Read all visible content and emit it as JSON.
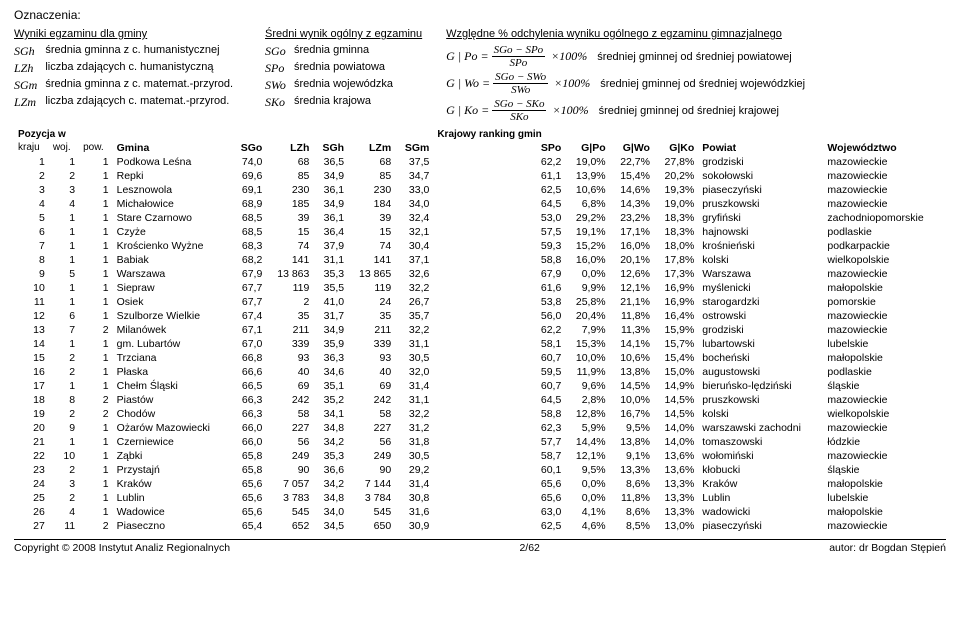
{
  "title": "Oznaczenia:",
  "legend_left": {
    "heading": "Wyniki egzaminu dla gminy",
    "rows": [
      {
        "sym": "SGh",
        "txt": "średnia gminna z c. humanistycznej"
      },
      {
        "sym": "LZh",
        "txt": "liczba zdających c. humanistyczną"
      },
      {
        "sym": "SGm",
        "txt": "średnia gminna z c. matemat.-przyrod."
      },
      {
        "sym": "LZm",
        "txt": "liczba zdających c. matemat.-przyrod."
      }
    ]
  },
  "legend_mid": {
    "heading": "Średni wynik ogólny z egzaminu",
    "rows": [
      {
        "sym": "SGo",
        "txt": "średnia gminna"
      },
      {
        "sym": "SPo",
        "txt": "średnia powiatowa"
      },
      {
        "sym": "SWo",
        "txt": "średnia wojewódzka"
      },
      {
        "sym": "SKo",
        "txt": "średnia krajowa"
      }
    ]
  },
  "legend_right": {
    "heading": "Względne % odchylenia wyniku ogólnego z egzaminu gimnazjalnego",
    "rows": [
      {
        "lhs": "G | Po =",
        "num": "SGo − SPo",
        "den": "SPo",
        "pct": "×100%",
        "desc": "średniej gminnej od średniej powiatowej"
      },
      {
        "lhs": "G | Wo =",
        "num": "SGo − SWo",
        "den": "SWo",
        "pct": "×100%",
        "desc": "średniej gminnej od średniej wojewódzkiej"
      },
      {
        "lhs": "G | Ko =",
        "num": "SGo − SKo",
        "den": "SKo",
        "pct": "×100%",
        "desc": "średniej gminnej od średniej krajowej"
      }
    ]
  },
  "table": {
    "pos_label": "Pozycja w",
    "kr_label": "Krajowy ranking gmin",
    "columns": [
      "kraju",
      "woj.",
      "pow.",
      "Gmina",
      "SGo",
      "LZh",
      "SGh",
      "LZm",
      "SGm",
      "SPo",
      "G|Po",
      "G|Wo",
      "G|Ko",
      "Powiat",
      "Województwo"
    ],
    "rows": [
      [
        "1",
        "1",
        "1",
        "Podkowa Leśna",
        "74,0",
        "68",
        "36,5",
        "68",
        "37,5",
        "62,2",
        "19,0%",
        "22,7%",
        "27,8%",
        "grodziski",
        "mazowieckie"
      ],
      [
        "2",
        "2",
        "1",
        "Repki",
        "69,6",
        "85",
        "34,9",
        "85",
        "34,7",
        "61,1",
        "13,9%",
        "15,4%",
        "20,2%",
        "sokołowski",
        "mazowieckie"
      ],
      [
        "3",
        "3",
        "1",
        "Lesznowola",
        "69,1",
        "230",
        "36,1",
        "230",
        "33,0",
        "62,5",
        "10,6%",
        "14,6%",
        "19,3%",
        "piaseczyński",
        "mazowieckie"
      ],
      [
        "4",
        "4",
        "1",
        "Michałowice",
        "68,9",
        "185",
        "34,9",
        "184",
        "34,0",
        "64,5",
        "6,8%",
        "14,3%",
        "19,0%",
        "pruszkowski",
        "mazowieckie"
      ],
      [
        "5",
        "1",
        "1",
        "Stare Czarnowo",
        "68,5",
        "39",
        "36,1",
        "39",
        "32,4",
        "53,0",
        "29,2%",
        "23,2%",
        "18,3%",
        "gryfiński",
        "zachodniopomorskie"
      ],
      [
        "6",
        "1",
        "1",
        "Czyże",
        "68,5",
        "15",
        "36,4",
        "15",
        "32,1",
        "57,5",
        "19,1%",
        "17,1%",
        "18,3%",
        "hajnowski",
        "podlaskie"
      ],
      [
        "7",
        "1",
        "1",
        "Krościenko Wyżne",
        "68,3",
        "74",
        "37,9",
        "74",
        "30,4",
        "59,3",
        "15,2%",
        "16,0%",
        "18,0%",
        "krośnieński",
        "podkarpackie"
      ],
      [
        "8",
        "1",
        "1",
        "Babiak",
        "68,2",
        "141",
        "31,1",
        "141",
        "37,1",
        "58,8",
        "16,0%",
        "20,1%",
        "17,8%",
        "kolski",
        "wielkopolskie"
      ],
      [
        "9",
        "5",
        "1",
        "Warszawa",
        "67,9",
        "13 863",
        "35,3",
        "13 865",
        "32,6",
        "67,9",
        "0,0%",
        "12,6%",
        "17,3%",
        "Warszawa",
        "mazowieckie"
      ],
      [
        "10",
        "1",
        "1",
        "Siepraw",
        "67,7",
        "119",
        "35,5",
        "119",
        "32,2",
        "61,6",
        "9,9%",
        "12,1%",
        "16,9%",
        "myślenicki",
        "małopolskie"
      ],
      [
        "11",
        "1",
        "1",
        "Osiek",
        "67,7",
        "2",
        "41,0",
        "24",
        "26,7",
        "53,8",
        "25,8%",
        "21,1%",
        "16,9%",
        "starogardzki",
        "pomorskie"
      ],
      [
        "12",
        "6",
        "1",
        "Szulborze Wielkie",
        "67,4",
        "35",
        "31,7",
        "35",
        "35,7",
        "56,0",
        "20,4%",
        "11,8%",
        "16,4%",
        "ostrowski",
        "mazowieckie"
      ],
      [
        "13",
        "7",
        "2",
        "Milanówek",
        "67,1",
        "211",
        "34,9",
        "211",
        "32,2",
        "62,2",
        "7,9%",
        "11,3%",
        "15,9%",
        "grodziski",
        "mazowieckie"
      ],
      [
        "14",
        "1",
        "1",
        "gm. Lubartów",
        "67,0",
        "339",
        "35,9",
        "339",
        "31,1",
        "58,1",
        "15,3%",
        "14,1%",
        "15,7%",
        "lubartowski",
        "lubelskie"
      ],
      [
        "15",
        "2",
        "1",
        "Trzciana",
        "66,8",
        "93",
        "36,3",
        "93",
        "30,5",
        "60,7",
        "10,0%",
        "10,6%",
        "15,4%",
        "bocheński",
        "małopolskie"
      ],
      [
        "16",
        "2",
        "1",
        "Płaska",
        "66,6",
        "40",
        "34,6",
        "40",
        "32,0",
        "59,5",
        "11,9%",
        "13,8%",
        "15,0%",
        "augustowski",
        "podlaskie"
      ],
      [
        "17",
        "1",
        "1",
        "Chełm Śląski",
        "66,5",
        "69",
        "35,1",
        "69",
        "31,4",
        "60,7",
        "9,6%",
        "14,5%",
        "14,9%",
        "bieruńsko-lędziński",
        "śląskie"
      ],
      [
        "18",
        "8",
        "2",
        "Piastów",
        "66,3",
        "242",
        "35,2",
        "242",
        "31,1",
        "64,5",
        "2,8%",
        "10,0%",
        "14,5%",
        "pruszkowski",
        "mazowieckie"
      ],
      [
        "19",
        "2",
        "2",
        "Chodów",
        "66,3",
        "58",
        "34,1",
        "58",
        "32,2",
        "58,8",
        "12,8%",
        "16,7%",
        "14,5%",
        "kolski",
        "wielkopolskie"
      ],
      [
        "20",
        "9",
        "1",
        "Ożarów Mazowiecki",
        "66,0",
        "227",
        "34,8",
        "227",
        "31,2",
        "62,3",
        "5,9%",
        "9,5%",
        "14,0%",
        "warszawski zachodni",
        "mazowieckie"
      ],
      [
        "21",
        "1",
        "1",
        "Czerniewice",
        "66,0",
        "56",
        "34,2",
        "56",
        "31,8",
        "57,7",
        "14,4%",
        "13,8%",
        "14,0%",
        "tomaszowski",
        "łódzkie"
      ],
      [
        "22",
        "10",
        "1",
        "Ząbki",
        "65,8",
        "249",
        "35,3",
        "249",
        "30,5",
        "58,7",
        "12,1%",
        "9,1%",
        "13,6%",
        "wołomiński",
        "mazowieckie"
      ],
      [
        "23",
        "2",
        "1",
        "Przystajń",
        "65,8",
        "90",
        "36,6",
        "90",
        "29,2",
        "60,1",
        "9,5%",
        "13,3%",
        "13,6%",
        "kłobucki",
        "śląskie"
      ],
      [
        "24",
        "3",
        "1",
        "Kraków",
        "65,6",
        "7 057",
        "34,2",
        "7 144",
        "31,4",
        "65,6",
        "0,0%",
        "8,6%",
        "13,3%",
        "Kraków",
        "małopolskie"
      ],
      [
        "25",
        "2",
        "1",
        "Lublin",
        "65,6",
        "3 783",
        "34,8",
        "3 784",
        "30,8",
        "65,6",
        "0,0%",
        "11,8%",
        "13,3%",
        "Lublin",
        "lubelskie"
      ],
      [
        "26",
        "4",
        "1",
        "Wadowice",
        "65,6",
        "545",
        "34,0",
        "545",
        "31,6",
        "63,0",
        "4,1%",
        "8,6%",
        "13,3%",
        "wadowicki",
        "małopolskie"
      ],
      [
        "27",
        "11",
        "2",
        "Piaseczno",
        "65,4",
        "652",
        "34,5",
        "650",
        "30,9",
        "62,5",
        "4,6%",
        "8,5%",
        "13,0%",
        "piaseczyński",
        "mazowieckie"
      ]
    ]
  },
  "footer": {
    "left": "Copyright © 2008 Instytut Analiz Regionalnych",
    "center": "2/62",
    "right": "autor: dr Bogdan Stępień"
  }
}
